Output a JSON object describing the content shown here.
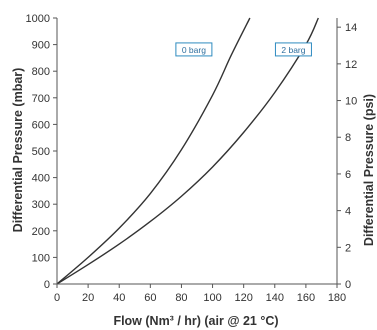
{
  "chart_data": {
    "type": "line",
    "xlabel": "Flow (Nm³ / hr) (air @ 21 °C)",
    "ylabel": "Differential Pressure (mbar)",
    "y2label": "Differential Pressure (psi)",
    "xlim": [
      0,
      180
    ],
    "ylim": [
      0,
      1000
    ],
    "y2lim": [
      0,
      14.5
    ],
    "x_ticks": [
      0,
      20,
      40,
      60,
      80,
      100,
      120,
      140,
      160,
      180
    ],
    "y_ticks": [
      0,
      100,
      200,
      300,
      400,
      500,
      600,
      700,
      800,
      900,
      1000
    ],
    "y2_ticks": [
      0,
      2,
      4,
      6,
      8,
      10,
      12,
      14
    ],
    "grid": false,
    "series": [
      {
        "name": "0 barg",
        "color": "#333333",
        "label_box_color": "#2e8bc0",
        "points": [
          [
            0,
            0
          ],
          [
            20,
            100
          ],
          [
            40,
            210
          ],
          [
            60,
            340
          ],
          [
            80,
            505
          ],
          [
            100,
            710
          ],
          [
            112,
            860
          ],
          [
            124,
            1000
          ]
        ]
      },
      {
        "name": "2 barg",
        "color": "#333333",
        "label_box_color": "#2e8bc0",
        "points": [
          [
            0,
            0
          ],
          [
            20,
            73
          ],
          [
            40,
            150
          ],
          [
            60,
            235
          ],
          [
            80,
            330
          ],
          [
            100,
            440
          ],
          [
            120,
            570
          ],
          [
            140,
            720
          ],
          [
            160,
            900
          ],
          [
            168,
            1000
          ]
        ]
      }
    ]
  }
}
